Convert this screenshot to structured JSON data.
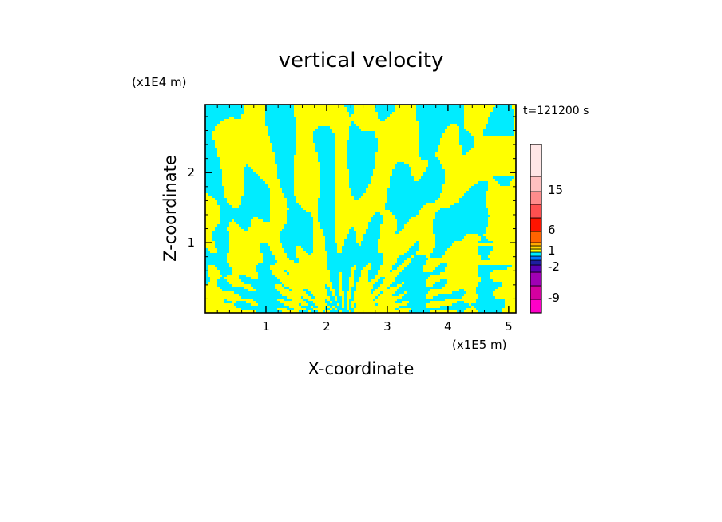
{
  "chart_data": {
    "type": "heatmap",
    "title": "vertical velocity",
    "xlabel": "X-coordinate",
    "ylabel": "Z-coordinate",
    "x_unit": "(x1E5 m)",
    "y_unit": "(x1E4 m)",
    "time_label": "t=121200 s",
    "x_ticks": [
      "1",
      "2",
      "3",
      "4",
      "5"
    ],
    "y_ticks": [
      "1",
      "2"
    ],
    "xlim": [
      0,
      5.12
    ],
    "ylim": [
      0,
      2.97
    ],
    "x_tick_values": [
      1,
      2,
      3,
      4,
      5
    ],
    "y_tick_values": [
      1,
      2
    ],
    "field_levels_visible": {
      "positive_color": "#ffff00",
      "negative_color": "#00ecff",
      "description_values": [
        0,
        1
      ]
    },
    "colorbar": {
      "labels": [
        "15",
        "6",
        "1",
        "-2",
        "-9"
      ],
      "label_values": [
        15,
        6,
        1,
        -2,
        -9
      ],
      "colors": [
        "#ff00c8",
        "#d400a0",
        "#a000b4",
        "#5a00b4",
        "#1e1ea0",
        "#0078ff",
        "#00ecff",
        "#ffff00",
        "#ffd700",
        "#ffaa00",
        "#ff6400",
        "#ff1400",
        "#ff5050",
        "#ff8c8c",
        "#ffc0c0",
        "#ffe6e6"
      ]
    }
  }
}
